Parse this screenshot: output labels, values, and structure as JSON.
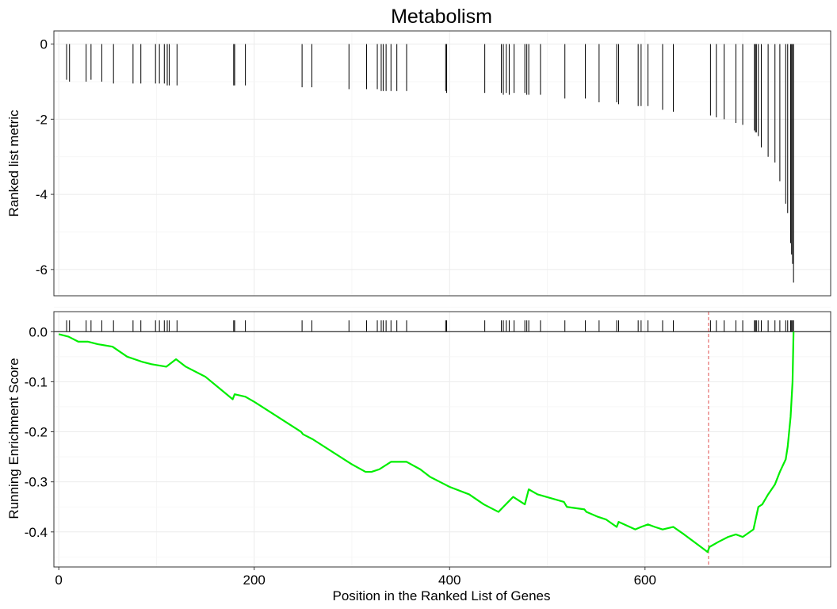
{
  "chart_data": {
    "type": "line",
    "title": "Metabolism",
    "xlabel": "Position in the Ranked List of Genes",
    "xlim": [
      -5,
      790
    ],
    "x_ticks": [
      0,
      200,
      400,
      600
    ],
    "x_tick_labels": [
      "0",
      "200",
      "400",
      "600"
    ],
    "grid": true,
    "panels": [
      {
        "name": "ranked-metric",
        "ylabel": "Ranked list metric",
        "ylim": [
          -6.7,
          0.35
        ],
        "y_ticks": [
          0,
          -2,
          -4,
          -6
        ],
        "y_tick_labels": [
          "0",
          "-2",
          "-4",
          "-6"
        ],
        "bars": {
          "x": [
            8,
            11,
            28,
            33,
            44,
            56,
            76,
            84,
            99,
            103,
            108,
            111,
            113,
            121,
            179,
            180,
            191,
            249,
            259,
            297,
            315,
            326,
            330,
            332,
            335,
            340,
            346,
            356,
            396,
            397,
            436,
            453,
            455,
            458,
            461,
            466,
            477,
            479,
            481,
            493,
            518,
            539,
            553,
            571,
            573,
            593,
            596,
            603,
            618,
            629,
            667,
            673,
            681,
            693,
            700,
            712,
            713,
            714,
            716,
            719,
            726,
            733,
            738,
            744,
            746,
            749,
            750,
            751,
            752
          ],
          "values": [
            -0.95,
            -1.0,
            -1.0,
            -0.95,
            -1.0,
            -1.05,
            -1.05,
            -1.05,
            -1.05,
            -1.05,
            -1.05,
            -1.1,
            -1.1,
            -1.1,
            -1.1,
            -1.1,
            -1.1,
            -1.15,
            -1.15,
            -1.2,
            -1.2,
            -1.2,
            -1.25,
            -1.25,
            -1.25,
            -1.25,
            -1.25,
            -1.25,
            -1.25,
            -1.3,
            -1.3,
            -1.3,
            -1.35,
            -1.3,
            -1.35,
            -1.3,
            -1.3,
            -1.35,
            -1.35,
            -1.35,
            -1.45,
            -1.45,
            -1.55,
            -1.55,
            -1.6,
            -1.65,
            -1.65,
            -1.65,
            -1.75,
            -1.8,
            -1.9,
            -1.95,
            -2.0,
            -2.1,
            -2.15,
            -2.3,
            -2.35,
            -2.35,
            -2.45,
            -2.75,
            -3.0,
            -3.15,
            -3.65,
            -4.25,
            -4.5,
            -5.3,
            -5.6,
            -5.85,
            -6.35
          ]
        }
      },
      {
        "name": "running-enrichment",
        "ylabel": "Running Enrichment Score",
        "ylim": [
          -0.47,
          0.04
        ],
        "y_ticks": [
          0.0,
          -0.1,
          -0.2,
          -0.3,
          -0.4
        ],
        "y_tick_labels": [
          "0.0",
          "-0.1",
          "-0.2",
          "-0.3",
          "-0.4"
        ],
        "peak_position": 665,
        "hits": [
          8,
          11,
          28,
          33,
          44,
          56,
          76,
          84,
          99,
          103,
          108,
          111,
          113,
          121,
          179,
          180,
          191,
          249,
          259,
          297,
          315,
          326,
          330,
          332,
          335,
          340,
          346,
          356,
          396,
          397,
          436,
          453,
          455,
          458,
          461,
          466,
          477,
          479,
          481,
          493,
          518,
          539,
          553,
          571,
          573,
          593,
          596,
          603,
          618,
          629,
          667,
          673,
          681,
          693,
          700,
          712,
          713,
          714,
          716,
          719,
          726,
          733,
          738,
          744,
          746,
          749,
          750,
          751,
          752
        ],
        "series": [
          {
            "x": [
              0,
              10,
              20,
              30,
              40,
              55,
              70,
              85,
              95,
              110,
              120,
              130,
              150,
              178,
              180,
              191,
              200,
              220,
              248,
              250,
              260,
              280,
              296,
              300,
              314,
              320,
              328,
              340,
              356,
              370,
              380,
              395,
              400,
              420,
              435,
              450,
              455,
              460,
              465,
              477,
              481,
              490,
              517,
              520,
              538,
              540,
              552,
              560,
              571,
              573,
              590,
              596,
              603,
              610,
              618,
              629,
              640,
              664,
              666,
              675,
              685,
              693,
              700,
              711,
              716,
              720,
              726,
              733,
              738,
              744,
              746,
              749,
              751,
              752
            ],
            "values": [
              -0.005,
              -0.01,
              -0.02,
              -0.02,
              -0.025,
              -0.03,
              -0.05,
              -0.06,
              -0.065,
              -0.07,
              -0.055,
              -0.07,
              -0.09,
              -0.135,
              -0.125,
              -0.13,
              -0.14,
              -0.165,
              -0.2,
              -0.205,
              -0.215,
              -0.24,
              -0.26,
              -0.265,
              -0.28,
              -0.28,
              -0.275,
              -0.26,
              -0.26,
              -0.275,
              -0.29,
              -0.305,
              -0.31,
              -0.325,
              -0.345,
              -0.36,
              -0.35,
              -0.34,
              -0.33,
              -0.345,
              -0.315,
              -0.325,
              -0.34,
              -0.35,
              -0.355,
              -0.36,
              -0.37,
              -0.375,
              -0.39,
              -0.38,
              -0.395,
              -0.39,
              -0.385,
              -0.39,
              -0.395,
              -0.39,
              -0.405,
              -0.44,
              -0.43,
              -0.42,
              -0.41,
              -0.405,
              -0.41,
              -0.395,
              -0.35,
              -0.345,
              -0.325,
              -0.305,
              -0.28,
              -0.255,
              -0.23,
              -0.17,
              -0.1,
              0.0
            ]
          }
        ]
      }
    ]
  }
}
